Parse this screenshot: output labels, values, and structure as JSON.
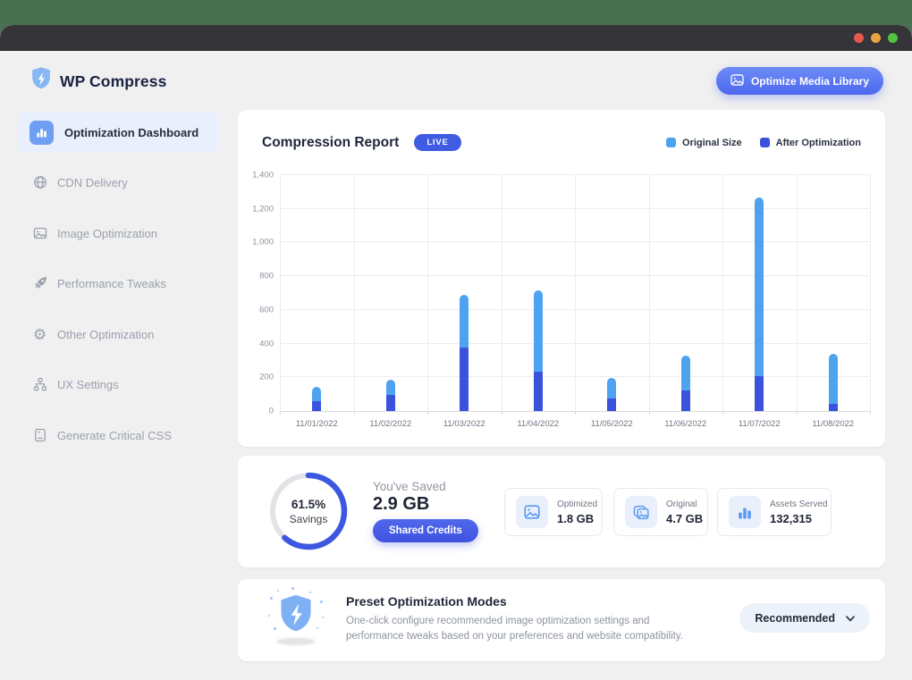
{
  "window": {
    "traffic_lights": [
      "close",
      "minimize",
      "zoom"
    ]
  },
  "header": {
    "app_name": "WP Compress",
    "optimize_button_label": "Optimize Media Library"
  },
  "sidebar": {
    "items": [
      {
        "label": "Optimization Dashboard",
        "icon": "bar-chart-icon",
        "active": true
      },
      {
        "label": "CDN Delivery",
        "icon": "globe-icon",
        "active": false
      },
      {
        "label": "Image Optimization",
        "icon": "image-icon",
        "active": false
      },
      {
        "label": "Performance Tweaks",
        "icon": "rocket-icon",
        "active": false
      },
      {
        "label": "Other Optimization",
        "icon": "gear-icon",
        "active": false
      },
      {
        "label": "UX Settings",
        "icon": "nodes-icon",
        "active": false
      },
      {
        "label": "Generate Critical CSS",
        "icon": "journal-icon",
        "active": false
      }
    ]
  },
  "report": {
    "title": "Compression Report",
    "live_badge": "LIVE",
    "legend": [
      {
        "label": "Original Size",
        "color": "#4da3f0"
      },
      {
        "label": "After Optimization",
        "color": "#3a52dc"
      }
    ]
  },
  "chart_data": {
    "type": "bar",
    "title": "Compression Report",
    "categories": [
      "11/01/2022",
      "11/02/2022",
      "11/03/2022",
      "11/04/2022",
      "11/05/2022",
      "11/06/2022",
      "11/07/2022",
      "11/08/2022"
    ],
    "series": [
      {
        "name": "Original Size",
        "color": "#4da3f0",
        "values": [
          145,
          185,
          690,
          715,
          195,
          330,
          1265,
          340
        ]
      },
      {
        "name": "After Optimization",
        "color": "#3a52dc",
        "values": [
          60,
          95,
          375,
          235,
          75,
          120,
          205,
          40
        ]
      }
    ],
    "xlabel": "",
    "ylabel": "",
    "ylim": [
      0,
      1400
    ],
    "ytick_step": 200,
    "grid": true,
    "legend_position": "top-right",
    "bar_style": "overlaid"
  },
  "savings": {
    "donut": {
      "percent_label": "61.5%",
      "sub_label": "Savings",
      "percent_value": 61.5,
      "color": "#3d58e0",
      "track_color": "#e3e3e7"
    },
    "saved_label": "You've Saved",
    "saved_value": "2.9 GB",
    "credits_button_label": "Shared Credits",
    "stats": [
      {
        "label": "Optimized",
        "value": "1.8 GB",
        "icon": "image-icon"
      },
      {
        "label": "Original",
        "value": "4.7 GB",
        "icon": "images-stack-icon"
      },
      {
        "label": "Assets Served",
        "value": "132,315",
        "icon": "bar-chart-icon"
      }
    ]
  },
  "preset": {
    "title": "Preset Optimization Modes",
    "description": "One-click configure recommended image optimization settings and performance tweaks based on your preferences and website compatibility.",
    "dropdown_value": "Recommended"
  }
}
